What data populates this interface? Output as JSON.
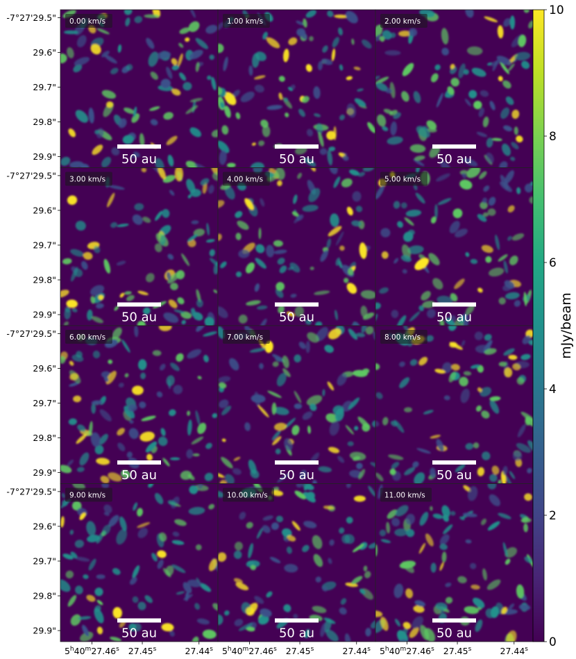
{
  "chart_data": {
    "type": "heatmap",
    "title": "",
    "grid": false,
    "panels": [
      {
        "label": "0.00 km/s"
      },
      {
        "label": "1.00 km/s"
      },
      {
        "label": "2.00 km/s"
      },
      {
        "label": "3.00 km/s"
      },
      {
        "label": "4.00 km/s"
      },
      {
        "label": "5.00 km/s"
      },
      {
        "label": "6.00 km/s"
      },
      {
        "label": "7.00 km/s"
      },
      {
        "label": "8.00 km/s"
      },
      {
        "label": "9.00 km/s"
      },
      {
        "label": "10.00 km/s"
      },
      {
        "label": "11.00 km/s"
      }
    ],
    "scalebar_label": "50 au",
    "y_ticks": [
      "-7°27'29.5\"",
      "29.6\"",
      "29.7\"",
      "29.8\"",
      "29.9\""
    ],
    "x_ticks": [
      {
        "h": "5",
        "m": "40",
        "s": "27.46"
      },
      {
        "s": "27.45"
      },
      {
        "s": "27.44"
      }
    ],
    "colorbar": {
      "label": "mJy/beam",
      "ticks": [
        "0",
        "2",
        "4",
        "6",
        "8",
        "10"
      ],
      "range": [
        0,
        10
      ],
      "colormap": "viridis"
    },
    "colors": {
      "background": "#440154",
      "low": "#3b528b",
      "mid": "#21918c",
      "high": "#5ec962",
      "peak": "#fde725"
    }
  }
}
